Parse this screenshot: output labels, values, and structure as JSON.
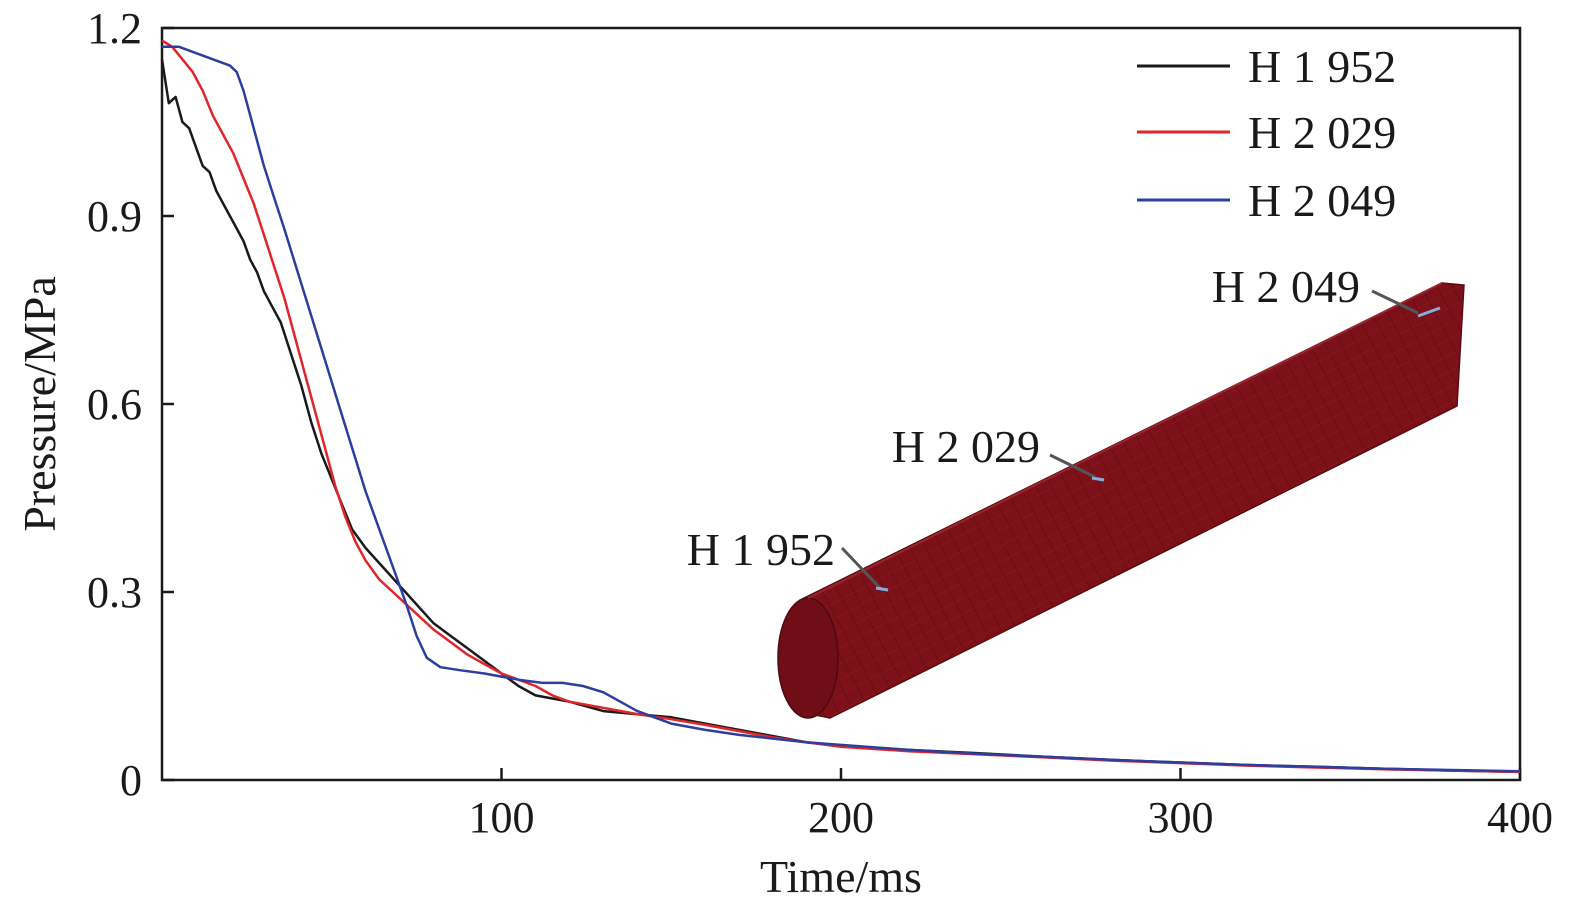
{
  "chart_data": {
    "type": "line",
    "title": "",
    "xlabel": "Time/ms",
    "ylabel": "Pressure/MPa",
    "xlim": [
      0,
      400
    ],
    "ylim": [
      0,
      1.2
    ],
    "xticks": [
      100,
      200,
      300,
      400
    ],
    "xtick_labels": [
      "100",
      "200",
      "300",
      "400"
    ],
    "yticks": [
      0,
      0.3,
      0.6,
      0.9,
      1.2
    ],
    "ytick_labels": [
      "0",
      "0.3",
      "0.6",
      "0.9",
      "1.2"
    ],
    "grid": false,
    "legend_position": "top-right",
    "series": [
      {
        "name": "H 1 952",
        "color": "#1a1a1a",
        "points": [
          [
            0,
            1.15
          ],
          [
            2,
            1.08
          ],
          [
            4,
            1.09
          ],
          [
            6,
            1.05
          ],
          [
            8,
            1.04
          ],
          [
            10,
            1.01
          ],
          [
            12,
            0.98
          ],
          [
            14,
            0.97
          ],
          [
            16,
            0.94
          ],
          [
            18,
            0.92
          ],
          [
            20,
            0.9
          ],
          [
            22,
            0.88
          ],
          [
            24,
            0.86
          ],
          [
            26,
            0.83
          ],
          [
            28,
            0.81
          ],
          [
            30,
            0.78
          ],
          [
            32,
            0.76
          ],
          [
            35,
            0.73
          ],
          [
            38,
            0.68
          ],
          [
            41,
            0.63
          ],
          [
            44,
            0.57
          ],
          [
            47,
            0.52
          ],
          [
            50,
            0.48
          ],
          [
            53,
            0.44
          ],
          [
            56,
            0.4
          ],
          [
            60,
            0.37
          ],
          [
            65,
            0.34
          ],
          [
            70,
            0.31
          ],
          [
            75,
            0.28
          ],
          [
            80,
            0.25
          ],
          [
            85,
            0.23
          ],
          [
            90,
            0.21
          ],
          [
            95,
            0.19
          ],
          [
            100,
            0.17
          ],
          [
            105,
            0.15
          ],
          [
            110,
            0.135
          ],
          [
            115,
            0.13
          ],
          [
            120,
            0.125
          ],
          [
            130,
            0.11
          ],
          [
            140,
            0.105
          ],
          [
            150,
            0.1
          ],
          [
            160,
            0.09
          ],
          [
            170,
            0.08
          ],
          [
            180,
            0.07
          ],
          [
            190,
            0.06
          ],
          [
            200,
            0.055
          ],
          [
            220,
            0.048
          ],
          [
            240,
            0.043
          ],
          [
            260,
            0.037
          ],
          [
            280,
            0.032
          ],
          [
            300,
            0.028
          ],
          [
            320,
            0.024
          ],
          [
            340,
            0.021
          ],
          [
            360,
            0.018
          ],
          [
            380,
            0.015
          ],
          [
            400,
            0.013
          ]
        ]
      },
      {
        "name": "H 2 029",
        "color": "#e0262a",
        "points": [
          [
            0,
            1.18
          ],
          [
            3,
            1.17
          ],
          [
            6,
            1.15
          ],
          [
            9,
            1.13
          ],
          [
            12,
            1.1
          ],
          [
            15,
            1.06
          ],
          [
            18,
            1.03
          ],
          [
            21,
            1.0
          ],
          [
            24,
            0.96
          ],
          [
            27,
            0.92
          ],
          [
            30,
            0.87
          ],
          [
            33,
            0.82
          ],
          [
            36,
            0.77
          ],
          [
            39,
            0.71
          ],
          [
            42,
            0.65
          ],
          [
            45,
            0.59
          ],
          [
            48,
            0.53
          ],
          [
            51,
            0.47
          ],
          [
            54,
            0.42
          ],
          [
            57,
            0.38
          ],
          [
            60,
            0.35
          ],
          [
            64,
            0.32
          ],
          [
            68,
            0.3
          ],
          [
            72,
            0.28
          ],
          [
            76,
            0.26
          ],
          [
            80,
            0.24
          ],
          [
            85,
            0.22
          ],
          [
            90,
            0.2
          ],
          [
            95,
            0.185
          ],
          [
            100,
            0.17
          ],
          [
            105,
            0.16
          ],
          [
            110,
            0.15
          ],
          [
            115,
            0.135
          ],
          [
            120,
            0.125
          ],
          [
            130,
            0.115
          ],
          [
            140,
            0.105
          ],
          [
            150,
            0.097
          ],
          [
            160,
            0.088
          ],
          [
            170,
            0.078
          ],
          [
            180,
            0.068
          ],
          [
            190,
            0.06
          ],
          [
            200,
            0.053
          ],
          [
            220,
            0.046
          ],
          [
            240,
            0.041
          ],
          [
            260,
            0.036
          ],
          [
            280,
            0.031
          ],
          [
            300,
            0.027
          ],
          [
            320,
            0.023
          ],
          [
            340,
            0.02
          ],
          [
            360,
            0.017
          ],
          [
            380,
            0.015
          ],
          [
            400,
            0.013
          ]
        ]
      },
      {
        "name": "H 2 049",
        "color": "#2d3f9e",
        "points": [
          [
            0,
            1.17
          ],
          [
            5,
            1.17
          ],
          [
            10,
            1.16
          ],
          [
            15,
            1.15
          ],
          [
            20,
            1.14
          ],
          [
            22,
            1.13
          ],
          [
            24,
            1.1
          ],
          [
            26,
            1.06
          ],
          [
            28,
            1.02
          ],
          [
            30,
            0.98
          ],
          [
            33,
            0.93
          ],
          [
            36,
            0.88
          ],
          [
            40,
            0.81
          ],
          [
            44,
            0.74
          ],
          [
            48,
            0.67
          ],
          [
            52,
            0.6
          ],
          [
            56,
            0.53
          ],
          [
            60,
            0.46
          ],
          [
            64,
            0.4
          ],
          [
            68,
            0.34
          ],
          [
            72,
            0.28
          ],
          [
            75,
            0.23
          ],
          [
            78,
            0.195
          ],
          [
            82,
            0.18
          ],
          [
            88,
            0.175
          ],
          [
            95,
            0.17
          ],
          [
            100,
            0.165
          ],
          [
            105,
            0.16
          ],
          [
            112,
            0.155
          ],
          [
            118,
            0.155
          ],
          [
            124,
            0.15
          ],
          [
            130,
            0.14
          ],
          [
            135,
            0.125
          ],
          [
            140,
            0.11
          ],
          [
            145,
            0.1
          ],
          [
            150,
            0.09
          ],
          [
            160,
            0.08
          ],
          [
            170,
            0.072
          ],
          [
            180,
            0.066
          ],
          [
            190,
            0.06
          ],
          [
            200,
            0.056
          ],
          [
            220,
            0.048
          ],
          [
            240,
            0.042
          ],
          [
            260,
            0.037
          ],
          [
            280,
            0.032
          ],
          [
            300,
            0.028
          ],
          [
            320,
            0.024
          ],
          [
            340,
            0.021
          ],
          [
            360,
            0.018
          ],
          [
            380,
            0.016
          ],
          [
            400,
            0.014
          ]
        ]
      }
    ],
    "inset": {
      "labels": [
        "H 1 952",
        "H 2 029",
        "H 2 049"
      ],
      "body_color": "#7d1119",
      "marker_color": "#7fb0e0"
    }
  }
}
